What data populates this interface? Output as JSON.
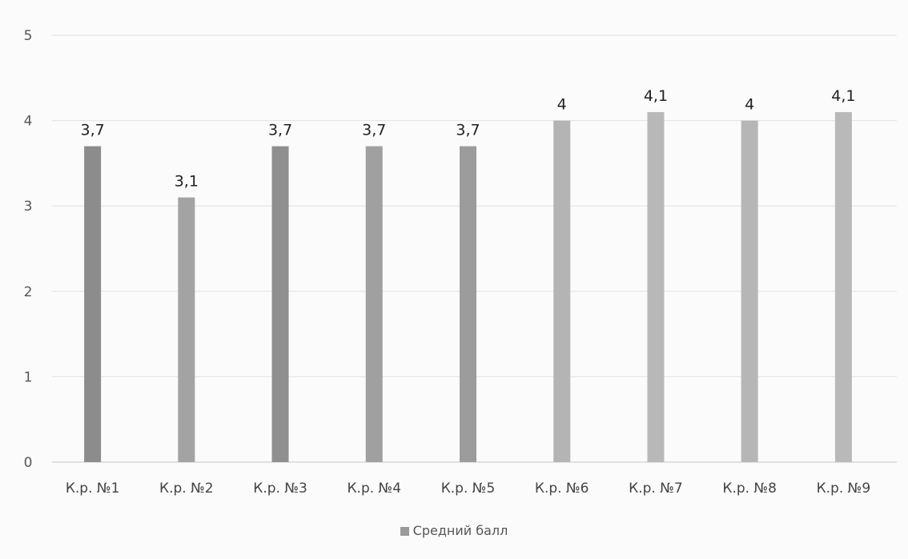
{
  "chart_data": {
    "type": "bar",
    "categories": [
      "К.р. №1",
      "К.р. №2",
      "К.р. №3",
      "К.р. №4",
      "К.р. №5",
      "К.р. №6",
      "К.р. №7",
      "К.р. №8",
      "К.р. №9"
    ],
    "series": [
      {
        "name": "Средний балл",
        "values": [
          3.7,
          3.1,
          3.7,
          3.7,
          3.7,
          4.0,
          4.1,
          4.0,
          4.1
        ],
        "data_labels": [
          "3,7",
          "3,1",
          "3,7",
          "3,7",
          "3,7",
          "4",
          "4,1",
          "4",
          "4,1"
        ]
      }
    ],
    "yticks": [
      "0",
      "1",
      "2",
      "3",
      "4",
      "5"
    ],
    "ylim": [
      0,
      5
    ],
    "grid": true,
    "legend_position": "bottom",
    "colors": {
      "bar": "#9a9a9a",
      "bar_shades": [
        "#8c8c8c",
        "#a3a3a3",
        "#8f8f8f",
        "#a0a0a0",
        "#9c9c9c",
        "#b4b4b4",
        "#b8b8b8",
        "#b6b6b6",
        "#b9b9b9"
      ],
      "grid": "#e2e2e2",
      "axis": "#c6c6c6"
    }
  }
}
